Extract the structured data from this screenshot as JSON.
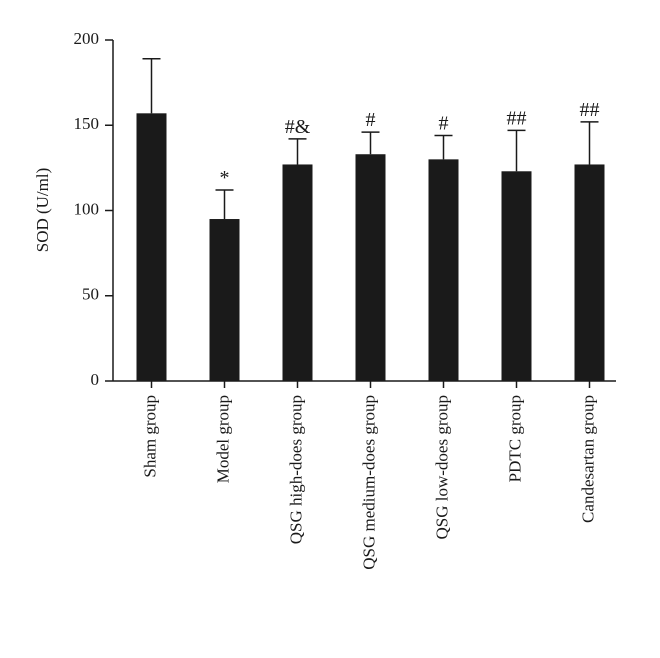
{
  "chart_data": {
    "type": "bar",
    "ylabel": "SOD (U/ml)",
    "categories": [
      "Sham group",
      "Model group",
      "QSG high-does group",
      "QSG medium-does group",
      "QSG low-does group",
      "PDTC group",
      "Candesartan group"
    ],
    "values": [
      157,
      95,
      127,
      133,
      130,
      123,
      127
    ],
    "errors": [
      32,
      17,
      15,
      13,
      14,
      24,
      25
    ],
    "annotations": [
      null,
      "*",
      "#&",
      "#",
      "#",
      "##",
      "##"
    ],
    "color": "#1a1a1a",
    "ylim": [
      0,
      200
    ],
    "yticks": [
      0,
      50,
      100,
      150,
      200
    ],
    "grid": false
  }
}
